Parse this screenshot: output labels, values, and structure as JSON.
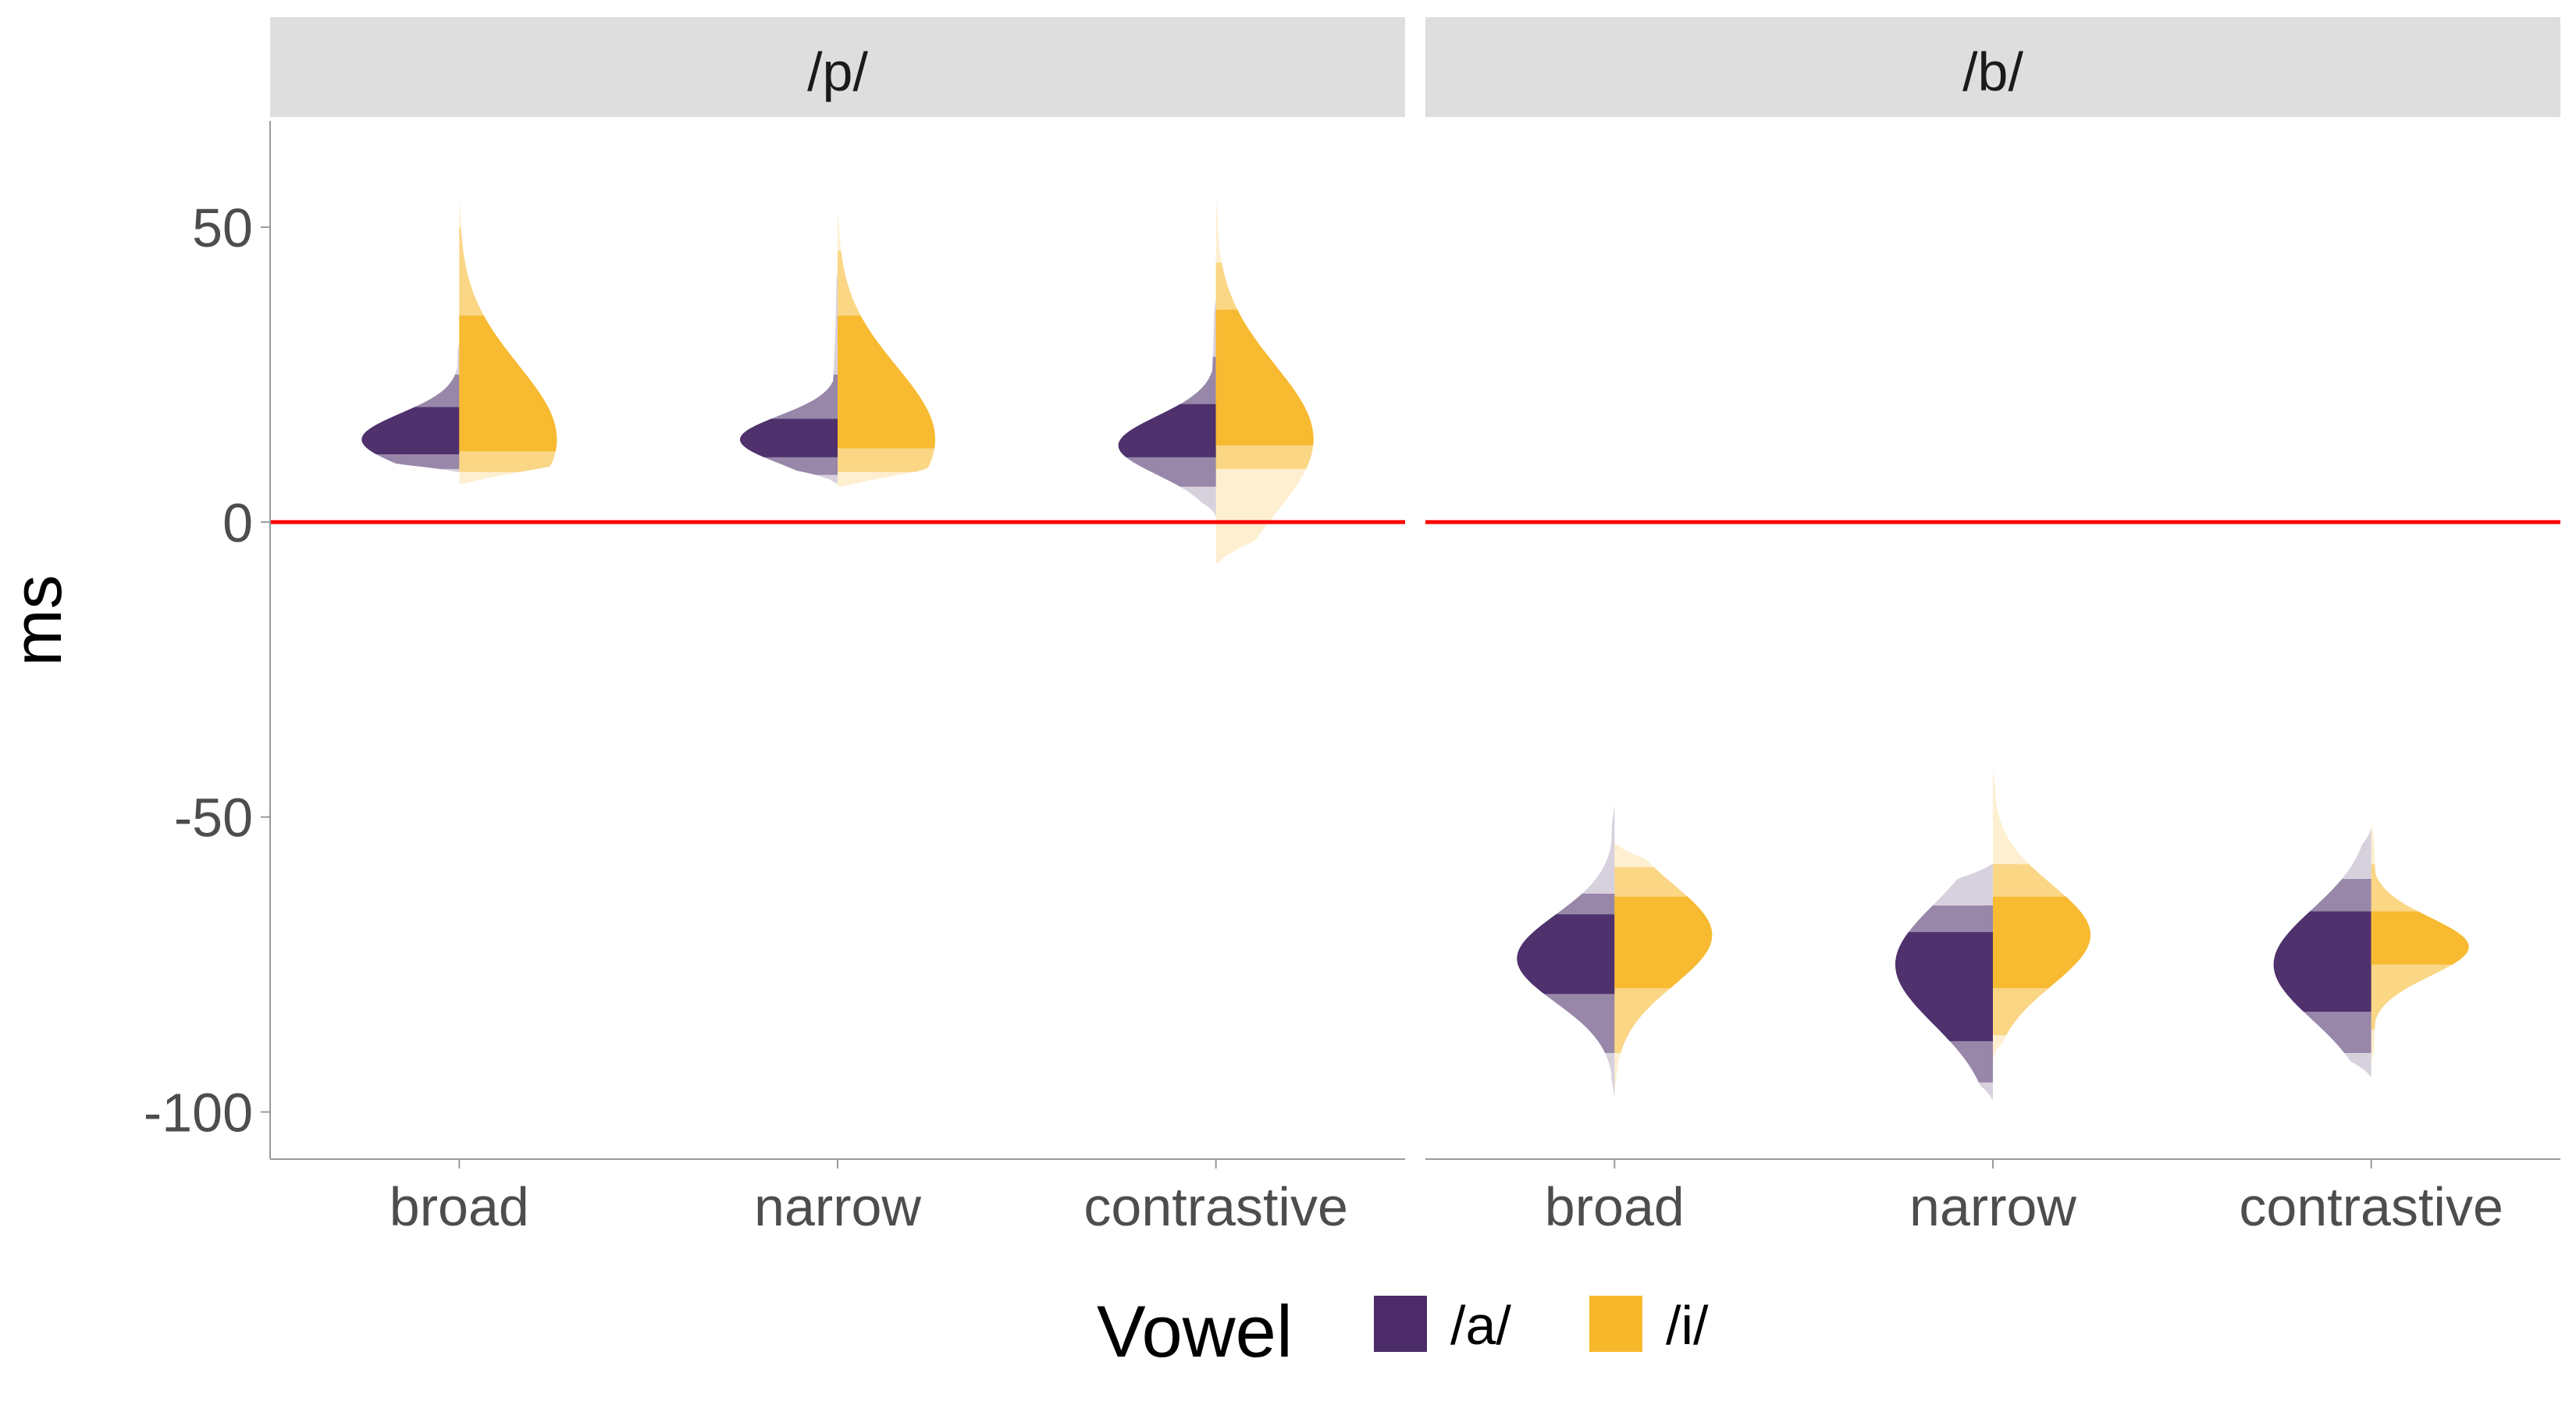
{
  "chart_data": {
    "type": "violin",
    "facets": [
      "/p/",
      "/b/"
    ],
    "categories": [
      "broad",
      "narrow",
      "contrastive"
    ],
    "ylabel": "ms",
    "xlabel": "",
    "ylim": [
      -108,
      68
    ],
    "yticks": [
      50,
      0,
      -50,
      -100
    ],
    "reference_line": {
      "y": 0,
      "color": "#ff0000"
    },
    "legend": {
      "title": "Vowel",
      "position": "bottom",
      "entries": [
        {
          "label": "/a/",
          "color": "#4b2c69"
        },
        {
          "label": "/i/",
          "color": "#f7b82b"
        }
      ]
    },
    "panels": [
      {
        "facet": "/p/",
        "groups": [
          {
            "category": "broad",
            "series": [
              {
                "vowel": "/a/",
                "color": "#4b2c69",
                "min": 8.5,
                "max": 30.5,
                "q25": 11.5,
                "q75": 19.5,
                "q05": 9,
                "q95": 25,
                "mode": 14
              },
              {
                "vowel": "/i/",
                "color": "#f7b82b",
                "min": 6.5,
                "max": 55,
                "q25": 12,
                "q75": 35,
                "q05": 8.5,
                "q95": 50,
                "mode": 14
              }
            ]
          },
          {
            "category": "narrow",
            "series": [
              {
                "vowel": "/a/",
                "color": "#4b2c69",
                "min": 6.5,
                "max": 43,
                "q25": 11,
                "q75": 17.5,
                "q05": 8,
                "q95": 25,
                "mode": 14
              },
              {
                "vowel": "/i/",
                "color": "#f7b82b",
                "min": 6,
                "max": 53,
                "q25": 12.5,
                "q75": 35,
                "q05": 8.5,
                "q95": 46,
                "mode": 14
              }
            ]
          },
          {
            "category": "contrastive",
            "series": [
              {
                "vowel": "/a/",
                "color": "#4b2c69",
                "min": 1,
                "max": 38,
                "q25": 11,
                "q75": 20,
                "q05": 6,
                "q95": 28,
                "mode": 13
              },
              {
                "vowel": "/i/",
                "color": "#f7b82b",
                "min": -7,
                "max": 55,
                "q25": 13,
                "q75": 36,
                "q05": 9,
                "q95": 44,
                "mode": 14
              }
            ]
          }
        ]
      },
      {
        "facet": "/b/",
        "groups": [
          {
            "category": "broad",
            "series": [
              {
                "vowel": "/a/",
                "color": "#4b2c69",
                "min": -97.5,
                "max": -48,
                "q25": -80,
                "q75": -66.5,
                "q05": -90,
                "q95": -63,
                "mode": -74
              },
              {
                "vowel": "/i/",
                "color": "#f7b82b",
                "min": -96.5,
                "max": -54.5,
                "q25": -79,
                "q75": -63.5,
                "q05": -90,
                "q95": -58.5,
                "mode": -70
              }
            ]
          },
          {
            "category": "narrow",
            "series": [
              {
                "vowel": "/a/",
                "color": "#4b2c69",
                "min": -98,
                "max": -58,
                "q25": -88,
                "q75": -69.5,
                "q05": -95,
                "q95": -65,
                "mode": -75
              },
              {
                "vowel": "/i/",
                "color": "#f7b82b",
                "min": -91,
                "max": -42,
                "q25": -79,
                "q75": -63.5,
                "q05": -87,
                "q95": -58,
                "mode": -70
              }
            ]
          },
          {
            "category": "contrastive",
            "series": [
              {
                "vowel": "/a/",
                "color": "#4b2c69",
                "min": -94,
                "max": -52,
                "q25": -83,
                "q75": -66,
                "q05": -90,
                "q95": -60.5,
                "mode": -75
              },
              {
                "vowel": "/i/",
                "color": "#f7b82b",
                "min": -92,
                "max": -51,
                "q25": -75,
                "q75": -66,
                "q05": -86,
                "q95": -58,
                "mode": -72
              }
            ]
          }
        ]
      }
    ]
  }
}
